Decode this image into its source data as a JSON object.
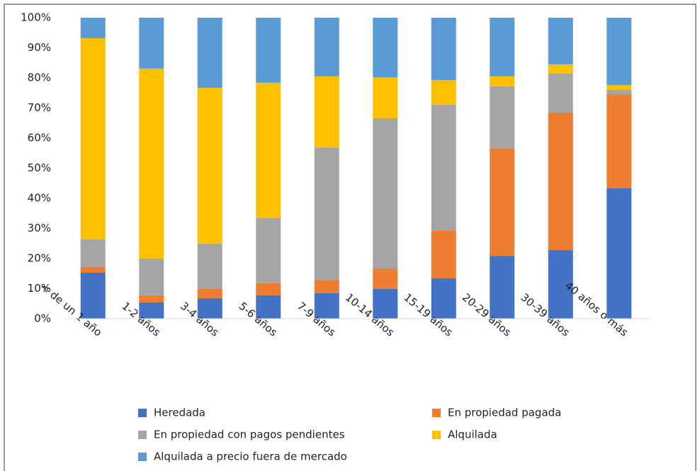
{
  "chart_data": {
    "type": "stacked_bar_percent",
    "categories": [
      "< de un 1 año",
      "1-2 años",
      "3-4 años",
      "5-6 años",
      "7-9 años",
      "10-14 años",
      "15-19 años",
      "20-29 años",
      "30-39 años",
      "40 años o más"
    ],
    "series": [
      {
        "name": "Heredada",
        "color": "#4472c4",
        "values": [
          15.3,
          5.4,
          6.8,
          7.8,
          8.5,
          9.9,
          13.4,
          20.9,
          22.8,
          43.3
        ]
      },
      {
        "name": "En propiedad pagada",
        "color": "#ed7d31",
        "values": [
          1.9,
          2.4,
          3.1,
          4,
          4.4,
          6.8,
          15.8,
          35.6,
          45.7,
          31.3
        ]
      },
      {
        "name": "En propiedad con pagos pendientes",
        "color": "#a5a5a5",
        "values": [
          9.2,
          12.2,
          15,
          21.6,
          44,
          49.9,
          41.9,
          20.7,
          12.9,
          1.4
        ]
      },
      {
        "name": "Alquilada",
        "color": "#ffc000",
        "values": [
          66.8,
          63.1,
          51.8,
          45,
          23.6,
          13.6,
          8.2,
          3.3,
          3.1,
          1.6
        ]
      },
      {
        "name": "Alquilada a precio fuera de mercado",
        "color": "#5b9bd5",
        "values": [
          6.8,
          16.9,
          23.3,
          21.6,
          19.5,
          19.8,
          20.7,
          19.5,
          15.5,
          22.4
        ]
      }
    ],
    "ylim": [
      0,
      100
    ],
    "yticks": [
      {
        "value": 0,
        "label": "0%"
      },
      {
        "value": 10,
        "label": "10%"
      },
      {
        "value": 20,
        "label": "20%"
      },
      {
        "value": 30,
        "label": "30%"
      },
      {
        "value": 40,
        "label": "40%"
      },
      {
        "value": 50,
        "label": "50%"
      },
      {
        "value": 60,
        "label": "60%"
      },
      {
        "value": 70,
        "label": "70%"
      },
      {
        "value": 80,
        "label": "80%"
      },
      {
        "value": 90,
        "label": "90%"
      },
      {
        "value": 100,
        "label": "100%"
      }
    ],
    "legend": "bottom"
  }
}
